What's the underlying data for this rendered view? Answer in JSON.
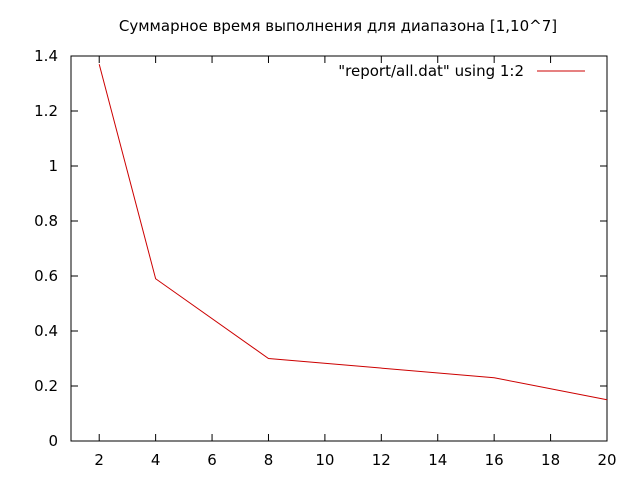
{
  "chart_data": {
    "type": "line",
    "title": "Суммарное время выполнения для диапазона [1,10^7]",
    "xlabel": "",
    "ylabel": "",
    "xlim": [
      1,
      20
    ],
    "ylim": [
      0,
      1.4
    ],
    "xticks": [
      2,
      4,
      6,
      8,
      10,
      12,
      14,
      16,
      18,
      20
    ],
    "yticks": [
      0,
      0.2,
      0.4,
      0.6,
      0.8,
      1,
      1.2,
      1.4
    ],
    "grid": false,
    "legend_position": "top-right",
    "series": [
      {
        "name": "\"report/all.dat\" using 1:2",
        "color": "#cc0000",
        "x": [
          2,
          4,
          8,
          16,
          20
        ],
        "y": [
          1.37,
          0.59,
          0.3,
          0.23,
          0.15
        ]
      }
    ]
  }
}
